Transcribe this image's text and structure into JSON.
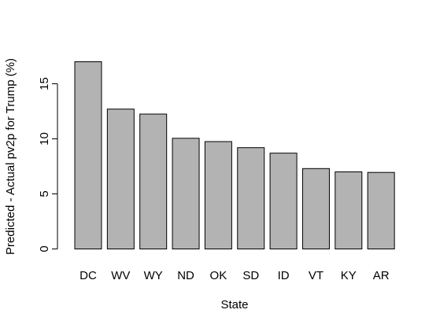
{
  "chart_data": {
    "type": "bar",
    "title": "",
    "xlabel": "State",
    "ylabel": "Predicted - Actual pv2p for Trump (%)",
    "categories": [
      "DC",
      "WV",
      "WY",
      "ND",
      "OK",
      "SD",
      "ID",
      "VT",
      "KY",
      "AR"
    ],
    "values": [
      17.0,
      12.7,
      12.25,
      10.05,
      9.75,
      9.2,
      8.7,
      7.3,
      7.0,
      6.95
    ],
    "ylim": [
      0,
      18
    ],
    "yticks": [
      0,
      5,
      10,
      15
    ],
    "grid": false,
    "legend": "none",
    "bar_color": "#b3b3b3",
    "bar_edge_color": "#000000"
  }
}
